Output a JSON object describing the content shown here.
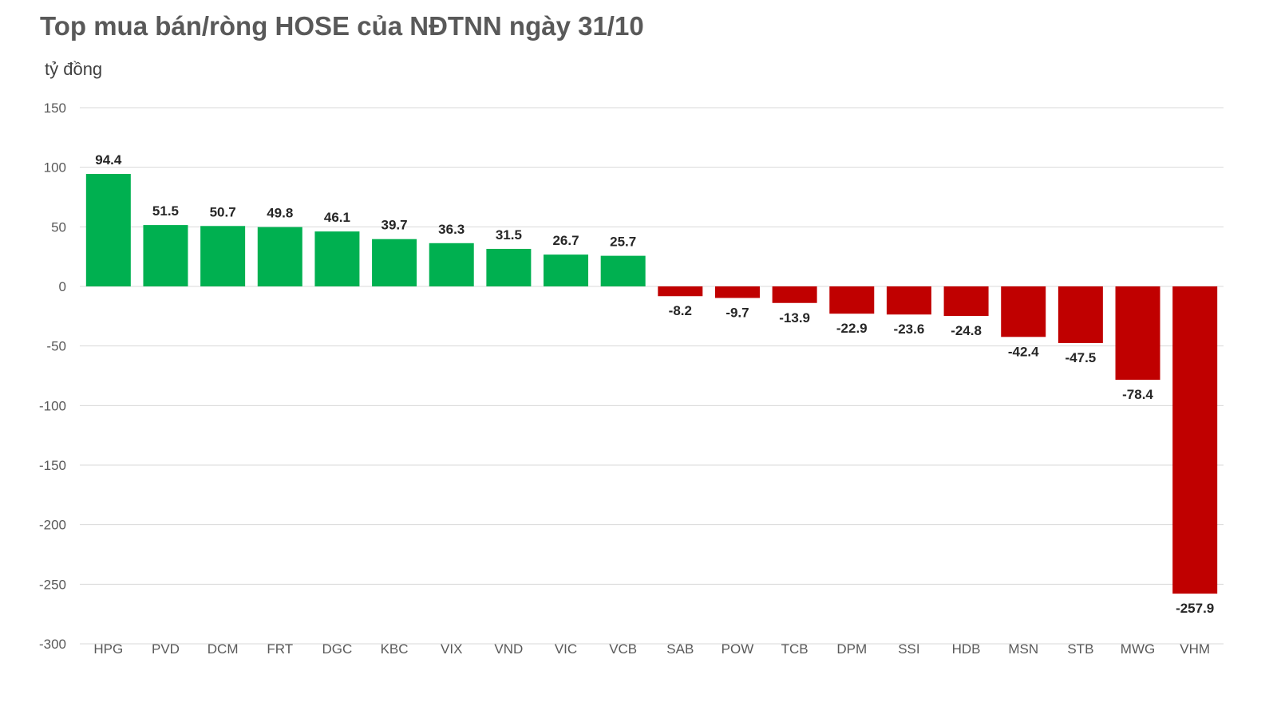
{
  "chart_data": {
    "type": "bar",
    "title": "Top mua bán/ròng HOSE của NĐTNN ngày 31/10",
    "ylabel": "tỷ đồng",
    "xlabel": "",
    "categories": [
      "HPG",
      "PVD",
      "DCM",
      "FRT",
      "DGC",
      "KBC",
      "VIX",
      "VND",
      "VIC",
      "VCB",
      "SAB",
      "POW",
      "TCB",
      "DPM",
      "SSI",
      "HDB",
      "MSN",
      "STB",
      "MWG",
      "VHM"
    ],
    "values": [
      94.4,
      51.5,
      50.7,
      49.8,
      46.1,
      39.7,
      36.3,
      31.5,
      26.7,
      25.7,
      -8.2,
      -9.7,
      -13.9,
      -22.9,
      -23.6,
      -24.8,
      -42.4,
      -47.5,
      -78.4,
      -257.9
    ],
    "data_labels": [
      "94.4",
      "51.5",
      "50.7",
      "49.8",
      "46.1",
      "39.7",
      "36.3",
      "31.5",
      "26.7",
      "25.7",
      "-8.2",
      "-9.7",
      "-13.9",
      "-22.9",
      "-23.6",
      "-24.8",
      "-42.4",
      "-47.5",
      "-78.4",
      "-257.9"
    ],
    "ylim": [
      -300,
      150
    ],
    "yticks": [
      150,
      100,
      50,
      0,
      -50,
      -100,
      -150,
      -200,
      -250,
      -300
    ],
    "ytick_labels": [
      "150",
      "100",
      "50",
      "0",
      "-50",
      "-100",
      "-150",
      "-200",
      "-250",
      "-300"
    ],
    "grid": true,
    "legend": "none",
    "colors": {
      "positive": "#00b050",
      "negative": "#c00000"
    }
  }
}
